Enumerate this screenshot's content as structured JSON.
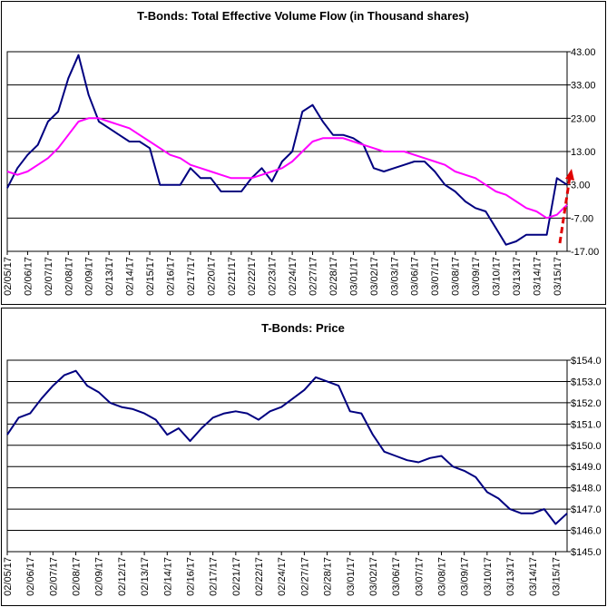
{
  "chart_data": [
    {
      "type": "line",
      "title": "T-Bonds: Total Effective Volume Flow (in Thousand shares)",
      "categories": [
        "02/05/17",
        null,
        "02/06/17",
        null,
        "02/07/17",
        null,
        "02/08/17",
        null,
        "02/09/17",
        null,
        "02/13/17",
        null,
        "02/14/17",
        null,
        "02/15/17",
        null,
        "02/16/17",
        null,
        "02/17/17",
        null,
        "02/20/17",
        null,
        "02/21/17",
        null,
        "02/22/17",
        null,
        "02/23/17",
        null,
        "02/24/17",
        null,
        "02/27/17",
        null,
        "02/28/17",
        null,
        "03/01/17",
        null,
        "03/02/17",
        null,
        "03/03/17",
        null,
        "03/06/17",
        null,
        "03/07/17",
        null,
        "03/08/17",
        null,
        "03/09/17",
        null,
        "03/10/17",
        null,
        "03/13/17",
        null,
        "03/14/17",
        null,
        "03/15/17",
        null
      ],
      "series": [
        {
          "color": "#000080",
          "values": [
            2,
            8,
            12,
            15,
            22,
            25,
            35,
            42,
            30,
            22,
            20,
            18,
            16,
            16,
            14,
            3,
            3,
            3,
            8,
            5,
            5,
            1,
            1,
            1,
            5,
            8,
            4,
            10,
            13,
            25,
            27,
            22,
            18,
            18,
            17,
            15,
            8,
            7,
            8,
            9,
            10,
            10,
            7,
            3,
            1,
            -2,
            -4,
            -5,
            -10,
            -15,
            -14,
            -12,
            -12,
            -12,
            5,
            3
          ]
        },
        {
          "color": "#ff00ff",
          "values": [
            7,
            6,
            7,
            9,
            11,
            14,
            18,
            22,
            23,
            23,
            22,
            21,
            20,
            18,
            16,
            14,
            12,
            11,
            9,
            8,
            7,
            6,
            5,
            5,
            5,
            6,
            7,
            8,
            10,
            13,
            16,
            17,
            17,
            17,
            16,
            15,
            14,
            13,
            13,
            13,
            12,
            11,
            10,
            9,
            7,
            6,
            5,
            3,
            1,
            0,
            -2,
            -4,
            -5,
            -7,
            -6,
            -3
          ]
        }
      ],
      "ylim": [
        -17,
        43
      ],
      "yticks": [
        {
          "value": 43,
          "label": "43.00"
        },
        {
          "value": 33,
          "label": "33.00"
        },
        {
          "value": 23,
          "label": "23.00"
        },
        {
          "value": 13,
          "label": "13.00"
        },
        {
          "value": 3,
          "label": "3.00"
        },
        {
          "value": -7,
          "label": "-7.00"
        },
        {
          "value": -17,
          "label": "-17.00"
        }
      ],
      "grid": true
    },
    {
      "type": "line",
      "title": "T-Bonds: Price",
      "categories": [
        "02/05/17",
        null,
        "02/06/17",
        null,
        "02/07/17",
        null,
        "02/08/17",
        null,
        "02/09/17",
        null,
        "02/12/17",
        null,
        "02/13/17",
        null,
        "02/14/17",
        null,
        "02/16/17",
        null,
        "02/17/17",
        null,
        "02/21/17",
        null,
        "02/22/17",
        null,
        "02/24/17",
        null,
        "02/27/17",
        null,
        "02/28/17",
        null,
        "03/01/17",
        null,
        "03/02/17",
        null,
        "03/06/17",
        null,
        "03/07/17",
        null,
        "03/08/17",
        null,
        "03/09/17",
        null,
        "03/10/17",
        null,
        "03/13/17",
        null,
        "03/14/17",
        null,
        "03/15/17",
        null
      ],
      "series": [
        {
          "color": "#000080",
          "values": [
            150.5,
            151.3,
            151.5,
            152.2,
            152.8,
            153.3,
            153.5,
            152.8,
            152.5,
            152.0,
            151.8,
            151.7,
            151.5,
            151.2,
            150.5,
            150.8,
            150.2,
            150.8,
            151.3,
            151.5,
            151.6,
            151.5,
            151.2,
            151.6,
            151.8,
            152.2,
            152.6,
            153.2,
            153.0,
            152.8,
            151.6,
            151.5,
            150.5,
            149.7,
            149.5,
            149.3,
            149.2,
            149.4,
            149.5,
            149.0,
            148.8,
            148.5,
            147.8,
            147.5,
            147.0,
            146.8,
            146.8,
            147.0,
            146.3,
            146.8
          ]
        }
      ],
      "ylim": [
        145,
        154
      ],
      "yticks": [
        {
          "value": 154,
          "label": "$154.0"
        },
        {
          "value": 153,
          "label": "$153.0"
        },
        {
          "value": 152,
          "label": "$152.0"
        },
        {
          "value": 151,
          "label": "$151.0"
        },
        {
          "value": 150,
          "label": "$150.0"
        },
        {
          "value": 149,
          "label": "$149.0"
        },
        {
          "value": 148,
          "label": "$148.0"
        },
        {
          "value": 147,
          "label": "$147.0"
        },
        {
          "value": 146,
          "label": "$146.0"
        },
        {
          "value": 145,
          "label": "$145.0"
        }
      ],
      "grid": true
    }
  ]
}
